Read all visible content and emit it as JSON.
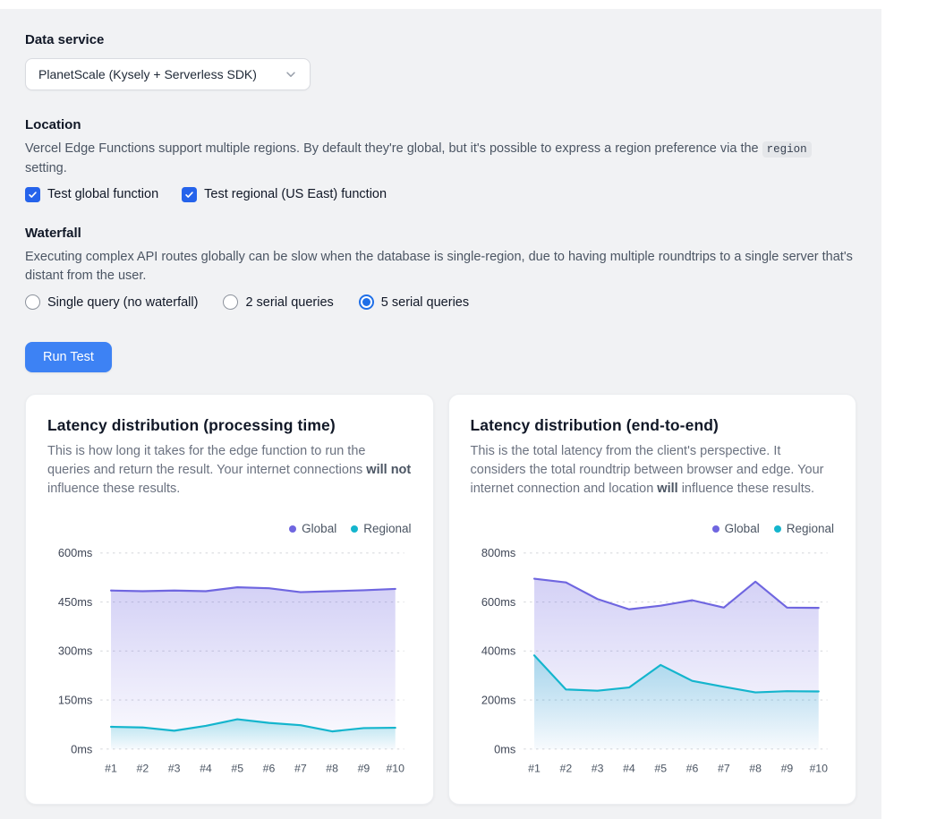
{
  "form": {
    "data_service": {
      "label": "Data service",
      "selected": "PlanetScale (Kysely + Serverless SDK)"
    },
    "location": {
      "label": "Location",
      "desc_before": "Vercel Edge Functions support multiple regions. By default they're global, but it's possible to express a region preference via the ",
      "code": "region",
      "desc_after": " setting.",
      "checkboxes": [
        {
          "label": "Test global function",
          "checked": true
        },
        {
          "label": "Test regional (US East) function",
          "checked": true
        }
      ]
    },
    "waterfall": {
      "label": "Waterfall",
      "description": "Executing complex API routes globally can be slow when the database is single-region, due to having multiple roundtrips to a single server that's distant from the user.",
      "radios": [
        {
          "label": "Single query (no waterfall)",
          "selected": false
        },
        {
          "label": "2 serial queries",
          "selected": false
        },
        {
          "label": "5 serial queries",
          "selected": true
        }
      ]
    },
    "run_button": "Run Test"
  },
  "cards": [
    {
      "title": "Latency distribution (processing time)",
      "desc_1": "This is how long it takes for the edge function to run the queries and return the result. Your internet connections ",
      "desc_bold": "will not",
      "desc_2": " influence these results."
    },
    {
      "title": "Latency distribution (end-to-end)",
      "desc_1": "This is the total latency from the client's perspective. It considers the total roundtrip between browser and edge. Your internet connection and location ",
      "desc_bold": "will",
      "desc_2": " influence these results."
    }
  ],
  "chart_data": [
    {
      "type": "area",
      "title": "Latency distribution (processing time)",
      "x": [
        "#1",
        "#2",
        "#3",
        "#4",
        "#5",
        "#6",
        "#7",
        "#8",
        "#9",
        "#10"
      ],
      "series": [
        {
          "name": "Global",
          "color": "#6f66e0",
          "values": [
            485,
            483,
            485,
            483,
            495,
            492,
            480,
            483,
            486,
            490
          ]
        },
        {
          "name": "Regional",
          "color": "#14b5cd",
          "values": [
            68,
            66,
            56,
            71,
            91,
            80,
            73,
            54,
            64,
            65
          ]
        }
      ],
      "ylim": [
        0,
        600
      ],
      "yticks": [
        0,
        150,
        300,
        450,
        600
      ],
      "ytick_suffix": "ms",
      "grid": "dashed",
      "legend_position": "top-right"
    },
    {
      "type": "area",
      "title": "Latency distribution (end-to-end)",
      "x": [
        "#1",
        "#2",
        "#3",
        "#4",
        "#5",
        "#6",
        "#7",
        "#8",
        "#9",
        "#10"
      ],
      "series": [
        {
          "name": "Global",
          "color": "#6f66e0",
          "values": [
            695,
            680,
            612,
            570,
            585,
            607,
            577,
            683,
            577,
            576
          ]
        },
        {
          "name": "Regional",
          "color": "#14b5cd",
          "values": [
            382,
            243,
            238,
            251,
            343,
            278,
            254,
            231,
            236,
            235
          ]
        }
      ],
      "ylim": [
        0,
        800
      ],
      "yticks": [
        0,
        200,
        400,
        600,
        800
      ],
      "ytick_suffix": "ms",
      "grid": "dashed",
      "legend_position": "top-right"
    }
  ]
}
